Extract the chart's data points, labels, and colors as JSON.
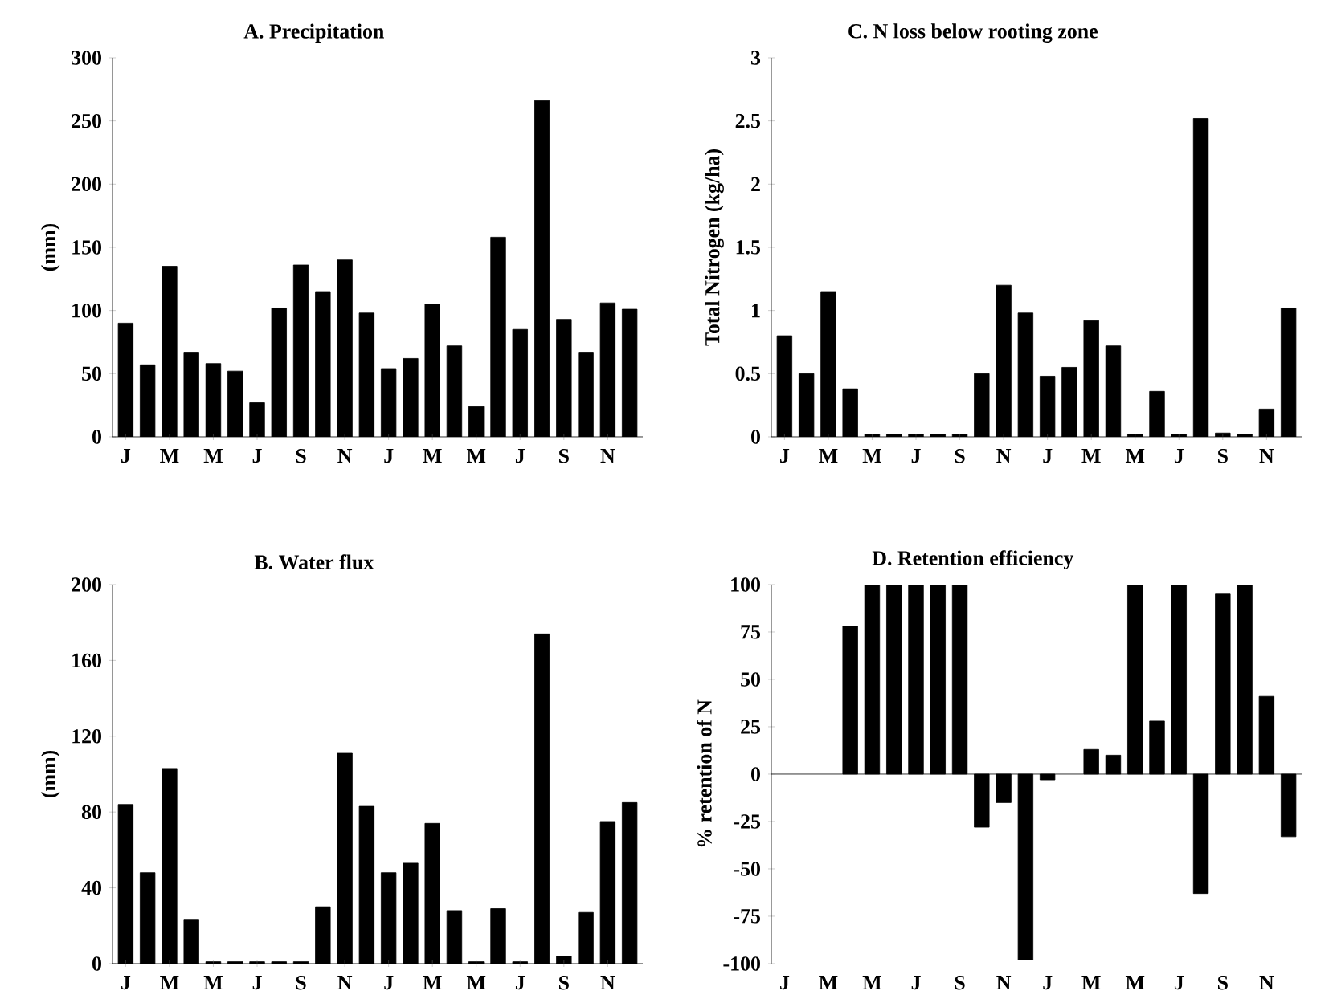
{
  "chart_data": [
    {
      "type": "bar",
      "title": "A. Precipitation",
      "ylabel": "(mm)",
      "categories": [
        "J",
        null,
        "M",
        null,
        "M",
        null,
        "J",
        null,
        "S",
        null,
        "N",
        null,
        "J",
        null,
        "M",
        null,
        "M",
        null,
        "J",
        null,
        "S",
        null,
        "N",
        null
      ],
      "values": [
        90,
        57,
        135,
        67,
        58,
        52,
        27,
        102,
        136,
        115,
        140,
        98,
        54,
        62,
        105,
        72,
        24,
        158,
        85,
        266,
        93,
        67,
        106,
        101
      ],
      "color": "#000000",
      "ylim": [
        0,
        300
      ],
      "yticks": [
        0,
        50,
        100,
        150,
        200,
        250,
        300
      ]
    },
    {
      "type": "bar",
      "title": "C.  N loss below rooting zone",
      "ylabel": "Total Nitrogen (kg/ha)",
      "categories": [
        "J",
        null,
        "M",
        null,
        "M",
        null,
        "J",
        null,
        "S",
        null,
        "N",
        null,
        "J",
        null,
        "M",
        null,
        "M",
        null,
        "J",
        null,
        "S",
        null,
        "N",
        null
      ],
      "values": [
        0.8,
        0.5,
        1.15,
        0.38,
        0.02,
        0.02,
        0.02,
        0.02,
        0.02,
        0.5,
        1.2,
        0.98,
        0.48,
        0.55,
        0.92,
        0.72,
        0.02,
        0.36,
        0.02,
        2.52,
        0.03,
        0.02,
        0.22,
        1.02
      ],
      "color": "#000000",
      "ylim": [
        0,
        3
      ],
      "yticks": [
        0,
        0.5,
        1,
        1.5,
        2,
        2.5,
        3
      ]
    },
    {
      "type": "bar",
      "title": "B. Water flux",
      "ylabel": "(mm)",
      "categories": [
        "J",
        null,
        "M",
        null,
        "M",
        null,
        "J",
        null,
        "S",
        null,
        "N",
        null,
        "J",
        null,
        "M",
        null,
        "M",
        null,
        "J",
        null,
        "S",
        null,
        "N",
        null
      ],
      "values": [
        84,
        48,
        103,
        23,
        1,
        1,
        1,
        1,
        1,
        30,
        111,
        83,
        48,
        53,
        74,
        28,
        1,
        29,
        1,
        174,
        4,
        27,
        75,
        85
      ],
      "color": "#000000",
      "ylim": [
        0,
        200
      ],
      "yticks": [
        0,
        40,
        80,
        120,
        160,
        200
      ]
    },
    {
      "type": "bar",
      "title": "D.  Retention efficiency",
      "ylabel": "% retention of N",
      "categories": [
        "J",
        null,
        "M",
        null,
        "M",
        null,
        "J",
        null,
        "S",
        null,
        "N",
        null,
        "J",
        null,
        "M",
        null,
        "M",
        null,
        "J",
        null,
        "S",
        null,
        "N",
        null
      ],
      "values": [
        null,
        null,
        null,
        78,
        100,
        100,
        100,
        100,
        100,
        -28,
        -15,
        -98,
        -3,
        null,
        13,
        10,
        100,
        28,
        100,
        -63,
        95,
        100,
        41,
        -33
      ],
      "color": "#000000",
      "ylim": [
        -100,
        100
      ],
      "yticks": [
        -100,
        -75,
        -50,
        -25,
        0,
        25,
        50,
        75,
        100
      ]
    }
  ]
}
